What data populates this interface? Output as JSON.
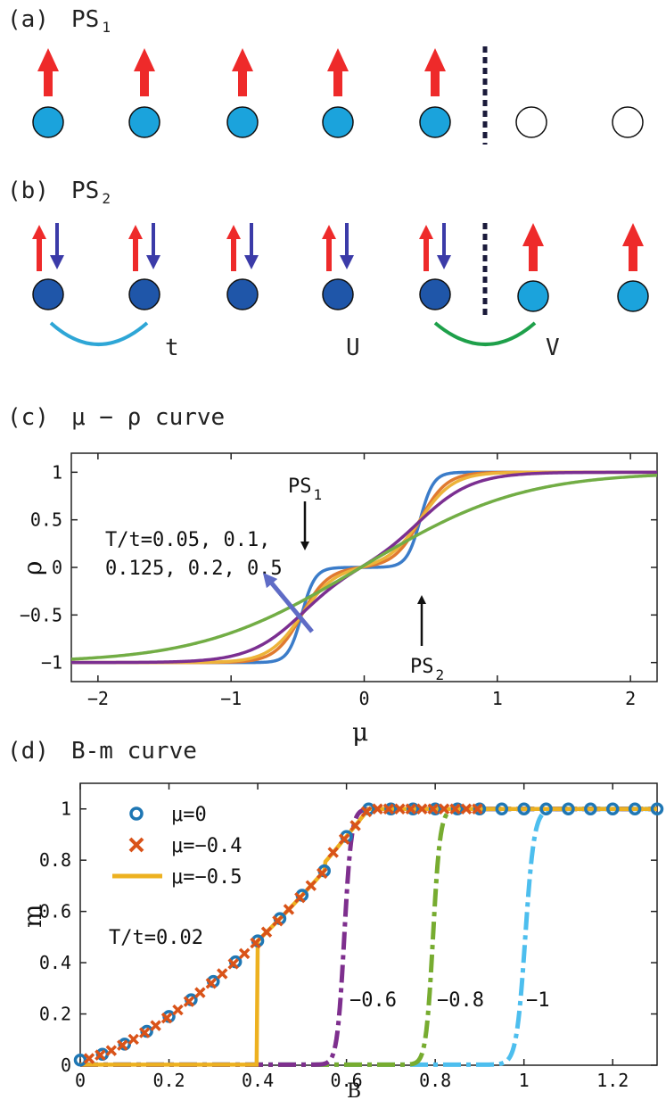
{
  "panel_a": {
    "label": "(a)",
    "title": "PS",
    "title_sub": "1"
  },
  "panel_b": {
    "label": "(b)",
    "title": "PS",
    "title_sub": "2",
    "bond_labels": [
      "t",
      "U",
      "V"
    ]
  },
  "colors": {
    "spin_up": "#ee2a2a",
    "spin_down": "#3b3ba8",
    "site_single": "#1ba3dc",
    "site_double": "#1f56a9",
    "hop_t": "#2ea6d6",
    "hop_v": "#1ea04a",
    "divider": "#1a1a3a"
  },
  "chart_data": [
    {
      "type": "line",
      "panel_label": "(c)",
      "title": "μ − ρ curve",
      "xlabel": "μ",
      "ylabel": "ρ",
      "xlim": [
        -2.2,
        2.2
      ],
      "ylim": [
        -1.2,
        1.2
      ],
      "xticks": [
        -2,
        -1,
        0,
        1,
        2
      ],
      "yticks": [
        -1,
        -0.5,
        0,
        0.5,
        1
      ],
      "xtick_labels": [
        "−2",
        "−1",
        "0",
        "1",
        "2"
      ],
      "ytick_labels": [
        "−1",
        "−0.5",
        "0",
        "0.5",
        "1"
      ],
      "annotation_lines": [
        "T/t=0.05, 0.1,",
        "0.125, 0.2, 0.5"
      ],
      "arrow_labels": [
        {
          "text": "PS",
          "sub": "1"
        },
        {
          "text": "PS",
          "sub": "2"
        }
      ],
      "series": [
        {
          "name": "T/t=0.05",
          "T": 0.05,
          "color": "#3b7cc9"
        },
        {
          "name": "T/t=0.1",
          "T": 0.1,
          "color": "#e07a30"
        },
        {
          "name": "T/t=0.125",
          "T": 0.125,
          "color": "#edb33a"
        },
        {
          "name": "T/t=0.2",
          "T": 0.2,
          "color": "#7b2f91"
        },
        {
          "name": "T/t=0.5",
          "T": 0.5,
          "color": "#72ad45"
        }
      ]
    },
    {
      "type": "line",
      "panel_label": "(d)",
      "title": "B-m curve",
      "xlabel": "B",
      "ylabel": "m",
      "xlim": [
        0,
        1.3
      ],
      "ylim": [
        0,
        1.1
      ],
      "xticks": [
        0,
        0.2,
        0.4,
        0.6,
        0.8,
        1,
        1.2
      ],
      "yticks": [
        0,
        0.2,
        0.4,
        0.6,
        0.8,
        1
      ],
      "xtick_labels": [
        "0",
        "0.2",
        "0.4",
        "0.6",
        "0.8",
        "1",
        "1.2"
      ],
      "ytick_labels": [
        "0",
        "0.2",
        "0.4",
        "0.6",
        "0.8",
        "1"
      ],
      "temperature_label": "T/t=0.02",
      "legend_position": "top-left",
      "series": [
        {
          "name": "μ=0",
          "mu": 0,
          "color": "#1f77b4",
          "style": "circles"
        },
        {
          "name": "μ=−0.4",
          "mu": -0.4,
          "color": "#d95319",
          "style": "crosses"
        },
        {
          "name": "μ=−0.5",
          "mu": -0.5,
          "color": "#edb120",
          "style": "solid"
        },
        {
          "name": "−0.6",
          "mu": -0.6,
          "color": "#7e2f8e",
          "style": "dashdot"
        },
        {
          "name": "−0.8",
          "mu": -0.8,
          "color": "#77ac30",
          "style": "dashdot"
        },
        {
          "name": "−1",
          "mu": -1,
          "color": "#4dbeee",
          "style": "dashdot"
        }
      ]
    }
  ]
}
